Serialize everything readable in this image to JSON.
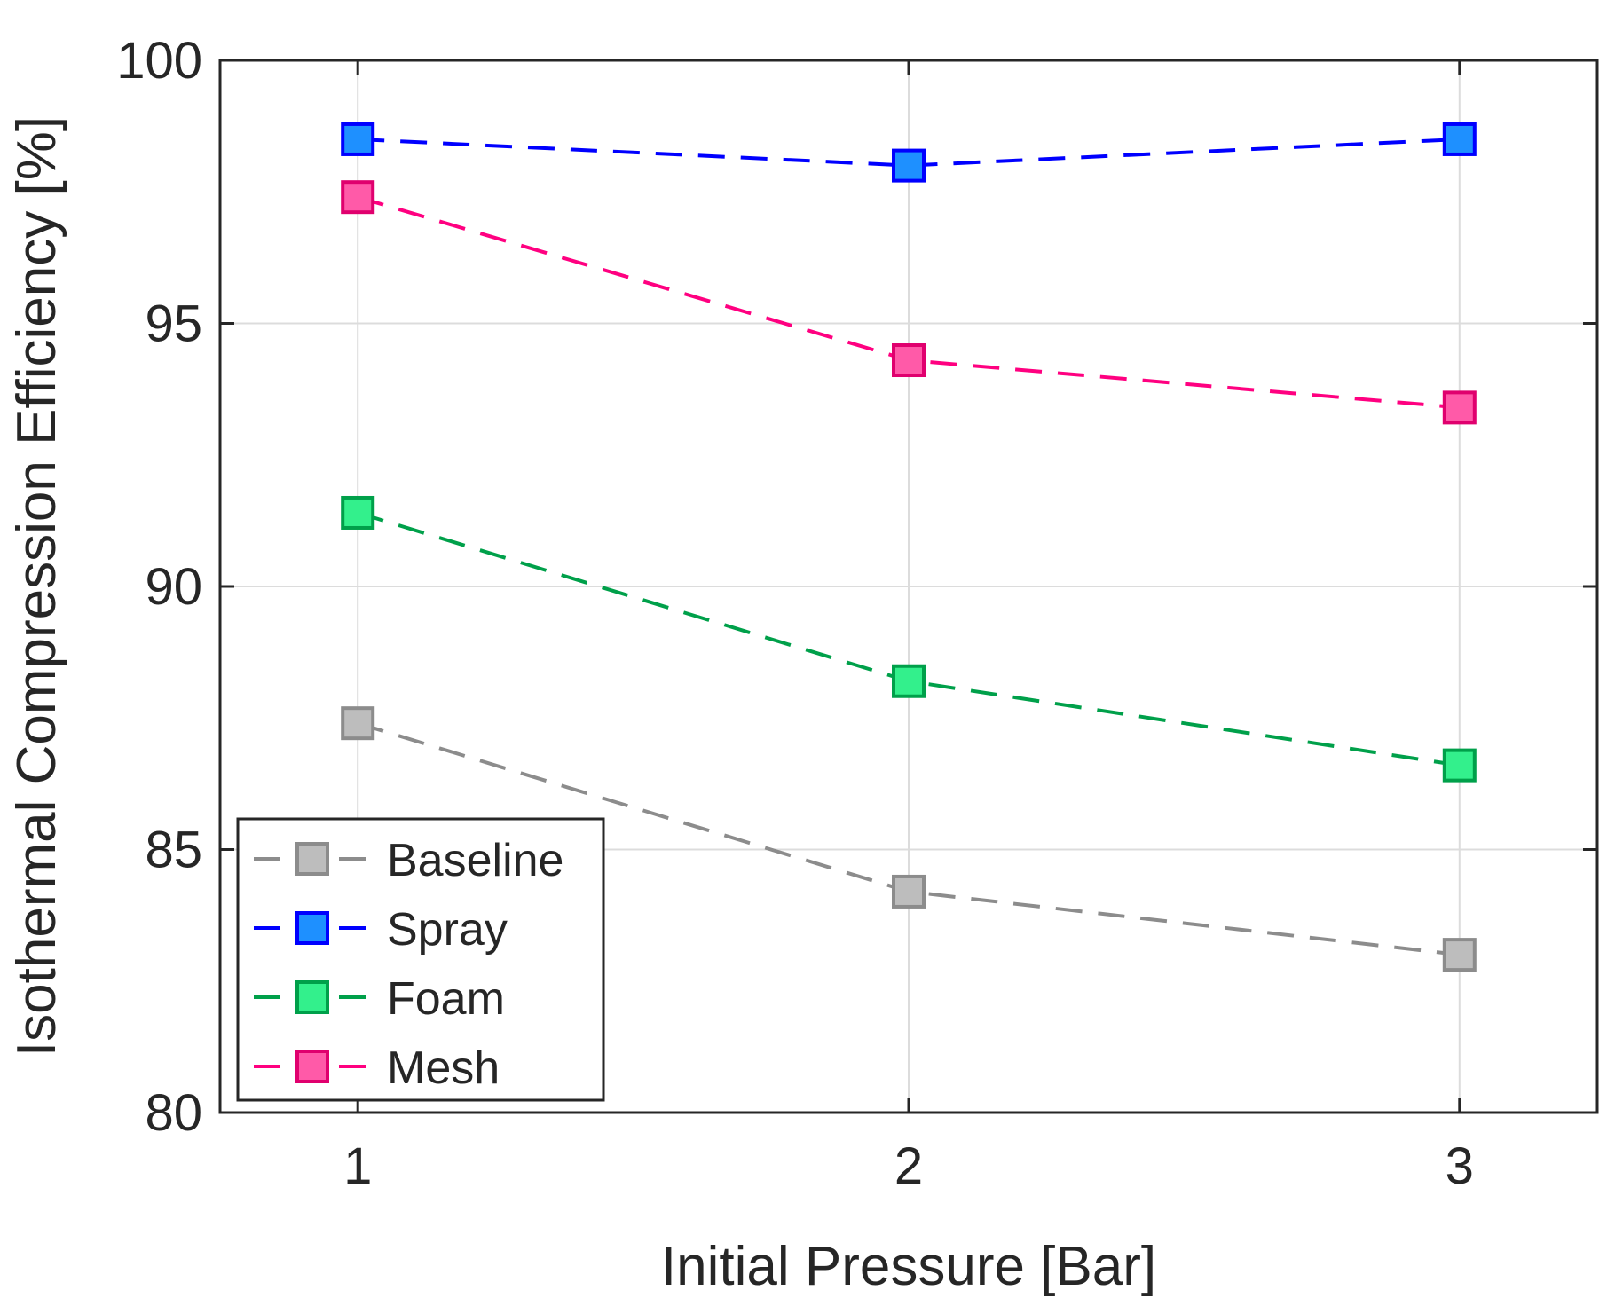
{
  "chart_data": {
    "type": "line",
    "title": "",
    "xlabel": "Initial Pressure [Bar]",
    "ylabel": "Isothermal Compression Efficiency [%]",
    "x": [
      1,
      2,
      3
    ],
    "xlim": [
      0.75,
      3.25
    ],
    "ylim": [
      80,
      100
    ],
    "xticks": [
      1,
      2,
      3
    ],
    "yticks": [
      80,
      85,
      90,
      95,
      100
    ],
    "grid": true,
    "legend_position": "bottom-left",
    "series": [
      {
        "name": "Baseline",
        "values": [
          87.4,
          84.2,
          83.0
        ],
        "line_color": "#8c8c8c",
        "marker_fill": "#bdbdbd",
        "marker_edge": "#8c8c8c"
      },
      {
        "name": "Spray",
        "values": [
          98.5,
          98.0,
          98.5
        ],
        "line_color": "#0000ff",
        "marker_fill": "#1e90ff",
        "marker_edge": "#0000ff"
      },
      {
        "name": "Foam",
        "values": [
          91.4,
          88.2,
          86.6
        ],
        "line_color": "#00a04a",
        "marker_fill": "#33f08c",
        "marker_edge": "#00a04a"
      },
      {
        "name": "Mesh",
        "values": [
          97.4,
          94.3,
          93.4
        ],
        "line_color": "#ff0080",
        "marker_fill": "#ff5aa8",
        "marker_edge": "#e0006e"
      }
    ]
  }
}
